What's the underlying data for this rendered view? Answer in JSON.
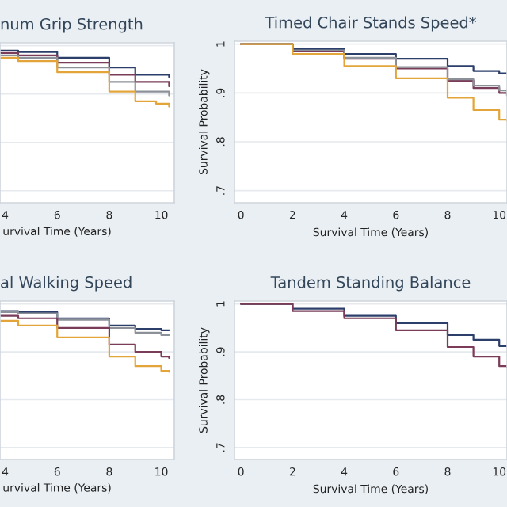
{
  "chart_data": [
    {
      "type": "step",
      "title": "num Grip Strength",
      "xlabel": "urvival Time (Years)",
      "x": [
        3.8,
        4.5,
        6,
        8,
        9,
        9.8,
        10.3
      ],
      "xlim": [
        3.8,
        10.5
      ],
      "xticks": [
        4,
        6,
        8,
        10
      ],
      "ylim": [
        0.675,
        1.006
      ],
      "tick_labels": "x",
      "grid": "y",
      "series": [
        {
          "color": "#2b3f6a",
          "values": [
            0.99,
            0.987,
            0.975,
            0.955,
            0.94,
            0.94,
            0.935
          ]
        },
        {
          "color": "#7a3c58",
          "values": [
            0.985,
            0.98,
            0.965,
            0.94,
            0.925,
            0.925,
            0.916
          ]
        },
        {
          "color": "#8c9199",
          "values": [
            0.98,
            0.975,
            0.955,
            0.925,
            0.905,
            0.905,
            0.897
          ]
        },
        {
          "color": "#e3a53a",
          "values": [
            0.975,
            0.968,
            0.945,
            0.905,
            0.885,
            0.88,
            0.874
          ]
        }
      ]
    },
    {
      "type": "step",
      "title": "Timed Chair Stands Speed*",
      "xlabel": "Survival Time (Years)",
      "ylabel": "Survival Probability",
      "x": [
        0,
        2,
        4,
        6,
        8,
        9,
        10,
        10.3
      ],
      "xlim": [
        -0.25,
        10.3
      ],
      "xticks": [
        0,
        2,
        4,
        6,
        8,
        10
      ],
      "ylim": [
        0.675,
        1.006
      ],
      "yticks": [
        1,
        {
          "value": 0.9,
          "label": ".9"
        },
        {
          "value": 0.8,
          "label": ".8"
        },
        {
          "value": 0.7,
          "label": ".7"
        }
      ],
      "grid": "y",
      "series": [
        {
          "color": "#2b3f6a",
          "values": [
            1,
            0.99,
            0.98,
            0.97,
            0.955,
            0.945,
            0.94,
            0.94
          ]
        },
        {
          "color": "#7a3c58",
          "values": [
            1,
            0.985,
            0.97,
            0.95,
            0.925,
            0.91,
            0.9,
            0.895
          ]
        },
        {
          "color": "#8c9199",
          "values": [
            1,
            0.987,
            0.972,
            0.953,
            0.928,
            0.915,
            0.905,
            0.9
          ]
        },
        {
          "color": "#e3a53a",
          "values": [
            1,
            0.98,
            0.955,
            0.93,
            0.89,
            0.865,
            0.845,
            0.842
          ]
        }
      ]
    },
    {
      "type": "step",
      "title": "al Walking Speed",
      "xlabel": "urvival Time (Years)",
      "x": [
        3.8,
        4.5,
        6,
        8,
        9,
        10,
        10.3
      ],
      "xlim": [
        3.8,
        10.5
      ],
      "xticks": [
        4,
        6,
        8,
        10
      ],
      "ylim": [
        0.675,
        1.006
      ],
      "tick_labels": "x",
      "grid": "y",
      "series": [
        {
          "color": "#2b3f6a",
          "values": [
            0.985,
            0.983,
            0.97,
            0.955,
            0.948,
            0.945,
            0.945
          ]
        },
        {
          "color": "#8c9199",
          "values": [
            0.983,
            0.98,
            0.967,
            0.95,
            0.94,
            0.935,
            0.935
          ]
        },
        {
          "color": "#7a3c58",
          "values": [
            0.975,
            0.97,
            0.95,
            0.915,
            0.9,
            0.89,
            0.887
          ]
        },
        {
          "color": "#e3a53a",
          "values": [
            0.965,
            0.955,
            0.93,
            0.89,
            0.87,
            0.86,
            0.858
          ]
        }
      ]
    },
    {
      "type": "step",
      "title": "Tandem Standing Balance",
      "xlabel": "Survival Time (Years)",
      "ylabel": "Survival Probability",
      "x": [
        0,
        2,
        4,
        6,
        8,
        9,
        10,
        10.3
      ],
      "xlim": [
        -0.25,
        10.3
      ],
      "xticks": [
        0,
        2,
        4,
        6,
        8,
        10
      ],
      "ylim": [
        0.675,
        1.006
      ],
      "yticks": [
        1,
        {
          "value": 0.9,
          "label": ".9"
        },
        {
          "value": 0.8,
          "label": ".8"
        },
        {
          "value": 0.7,
          "label": ".7"
        }
      ],
      "grid": "y",
      "series": [
        {
          "color": "#2b3f6a",
          "values": [
            1,
            0.99,
            0.975,
            0.96,
            0.935,
            0.925,
            0.912,
            0.912
          ]
        },
        {
          "color": "#7a3c58",
          "values": [
            1,
            0.985,
            0.97,
            0.945,
            0.91,
            0.89,
            0.87,
            0.868
          ]
        }
      ]
    }
  ]
}
